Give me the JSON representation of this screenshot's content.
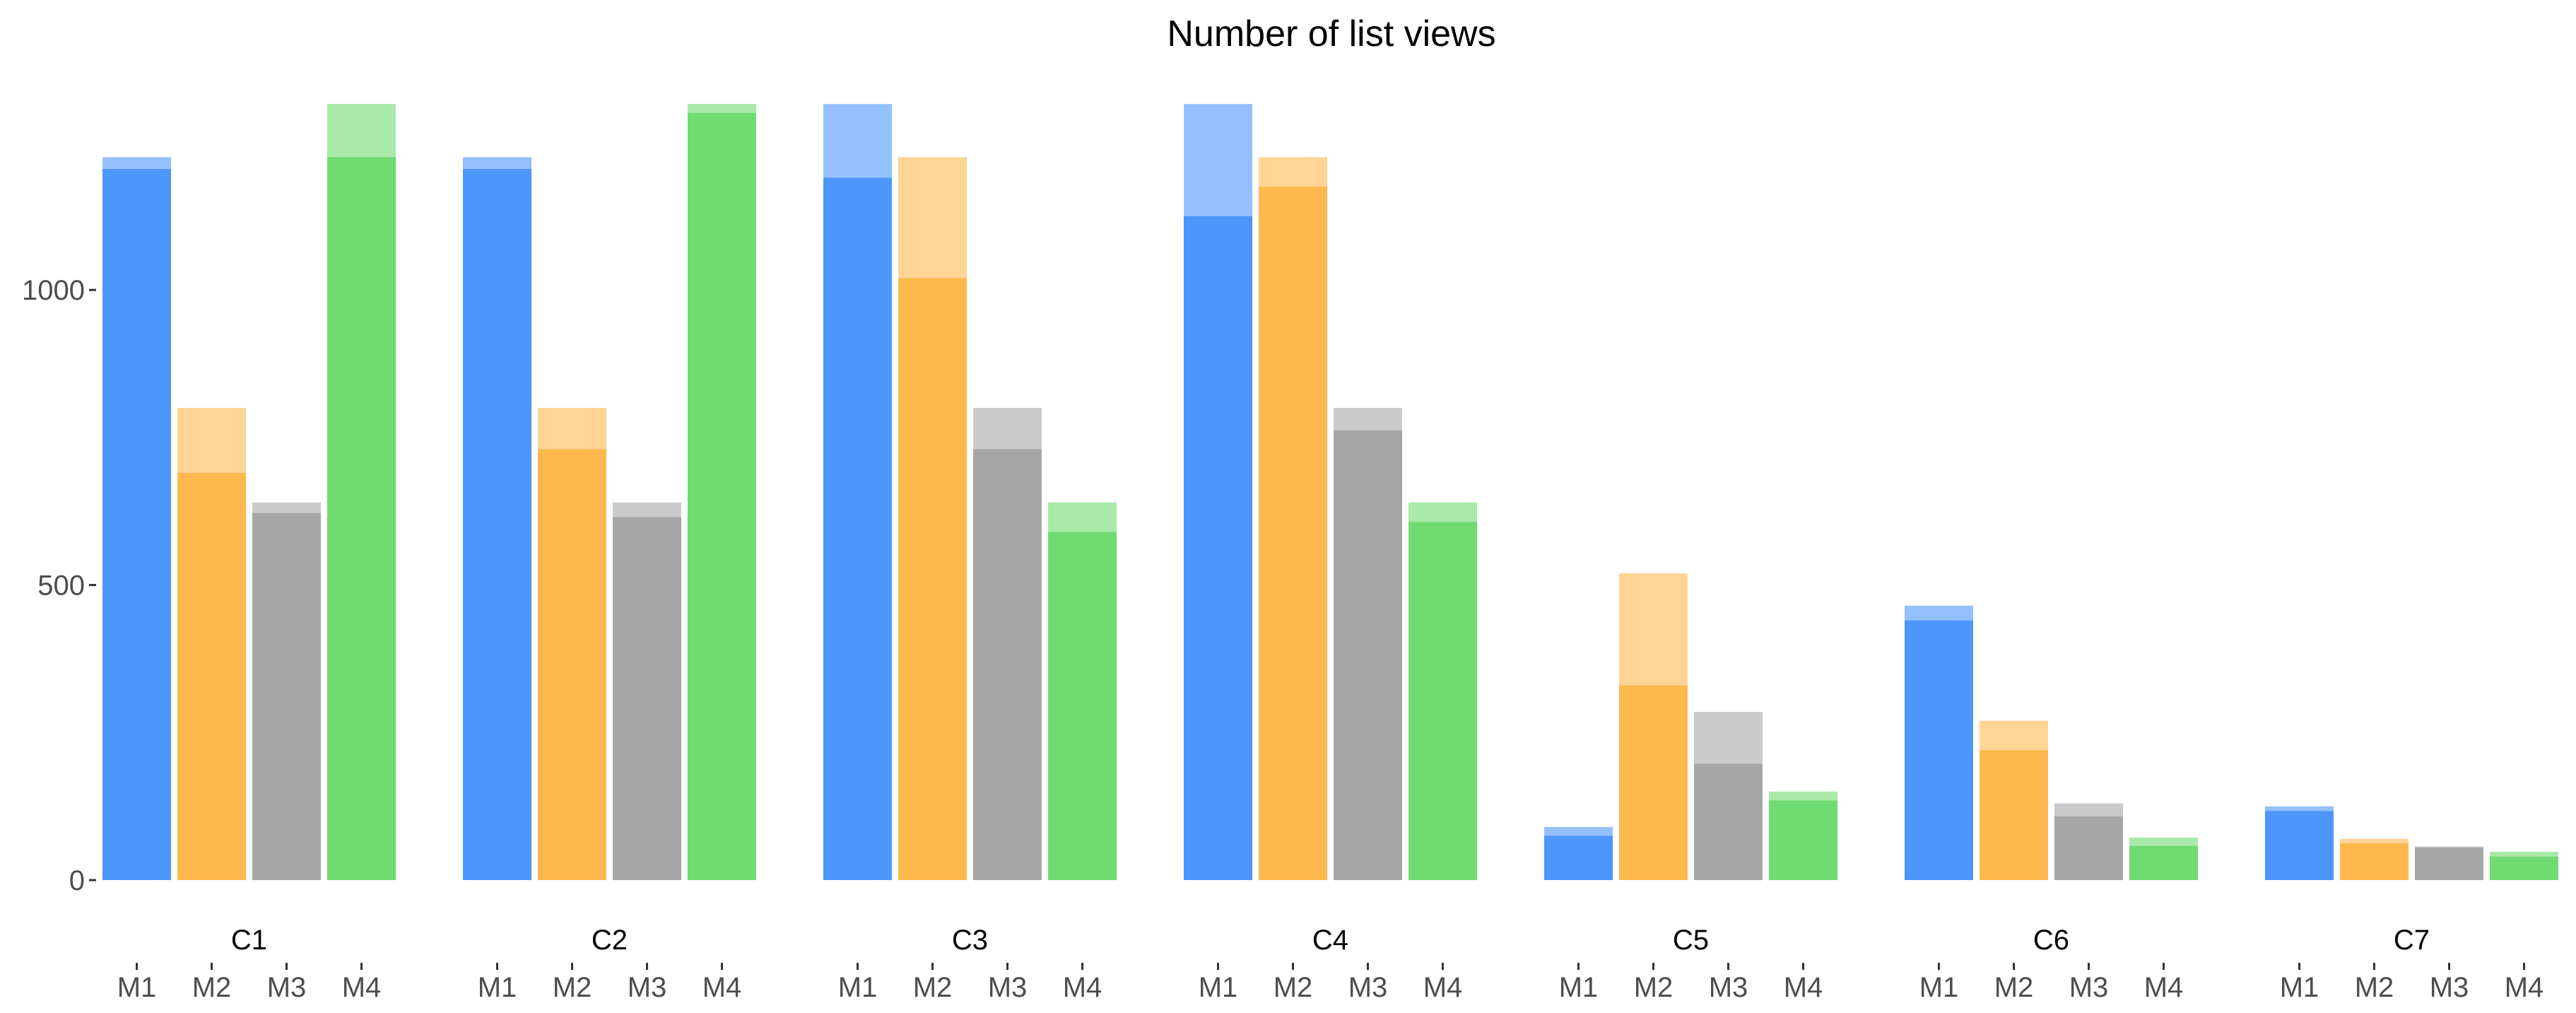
{
  "chart_data": {
    "type": "bar",
    "title": "Number of list views",
    "xlabel": "",
    "ylabel": "",
    "ylim": [
      0,
      1320
    ],
    "yticks": [
      0,
      500,
      1000
    ],
    "grid": false,
    "legend": "none",
    "groups": [
      "C1",
      "C2",
      "C3",
      "C4",
      "C5",
      "C6",
      "C7"
    ],
    "categories": [
      "M1",
      "M2",
      "M3",
      "M4"
    ],
    "colors": {
      "M1": "#4d96fc",
      "M2": "#ffb84d",
      "M3": "#a6a6a6",
      "M4": "#70db70"
    },
    "series": [
      {
        "layer": "total",
        "opacity": 0.6,
        "values": {
          "C1": [
            1225,
            800,
            640,
            1315
          ],
          "C2": [
            1225,
            800,
            640,
            1315
          ],
          "C3": [
            1315,
            1225,
            800,
            640
          ],
          "C4": [
            1315,
            1225,
            800,
            640
          ],
          "C5": [
            90,
            520,
            285,
            150
          ],
          "C6": [
            465,
            270,
            130,
            72
          ],
          "C7": [
            125,
            70,
            57,
            48
          ]
        }
      },
      {
        "layer": "part",
        "opacity": 1.0,
        "values": {
          "C1": [
            1205,
            690,
            622,
            1225
          ],
          "C2": [
            1205,
            730,
            615,
            1300
          ],
          "C3": [
            1190,
            1020,
            730,
            590
          ],
          "C4": [
            1125,
            1175,
            762,
            607
          ],
          "C5": [
            75,
            330,
            197,
            135
          ],
          "C6": [
            440,
            220,
            108,
            58
          ],
          "C7": [
            117,
            62,
            55,
            40
          ]
        }
      }
    ]
  }
}
